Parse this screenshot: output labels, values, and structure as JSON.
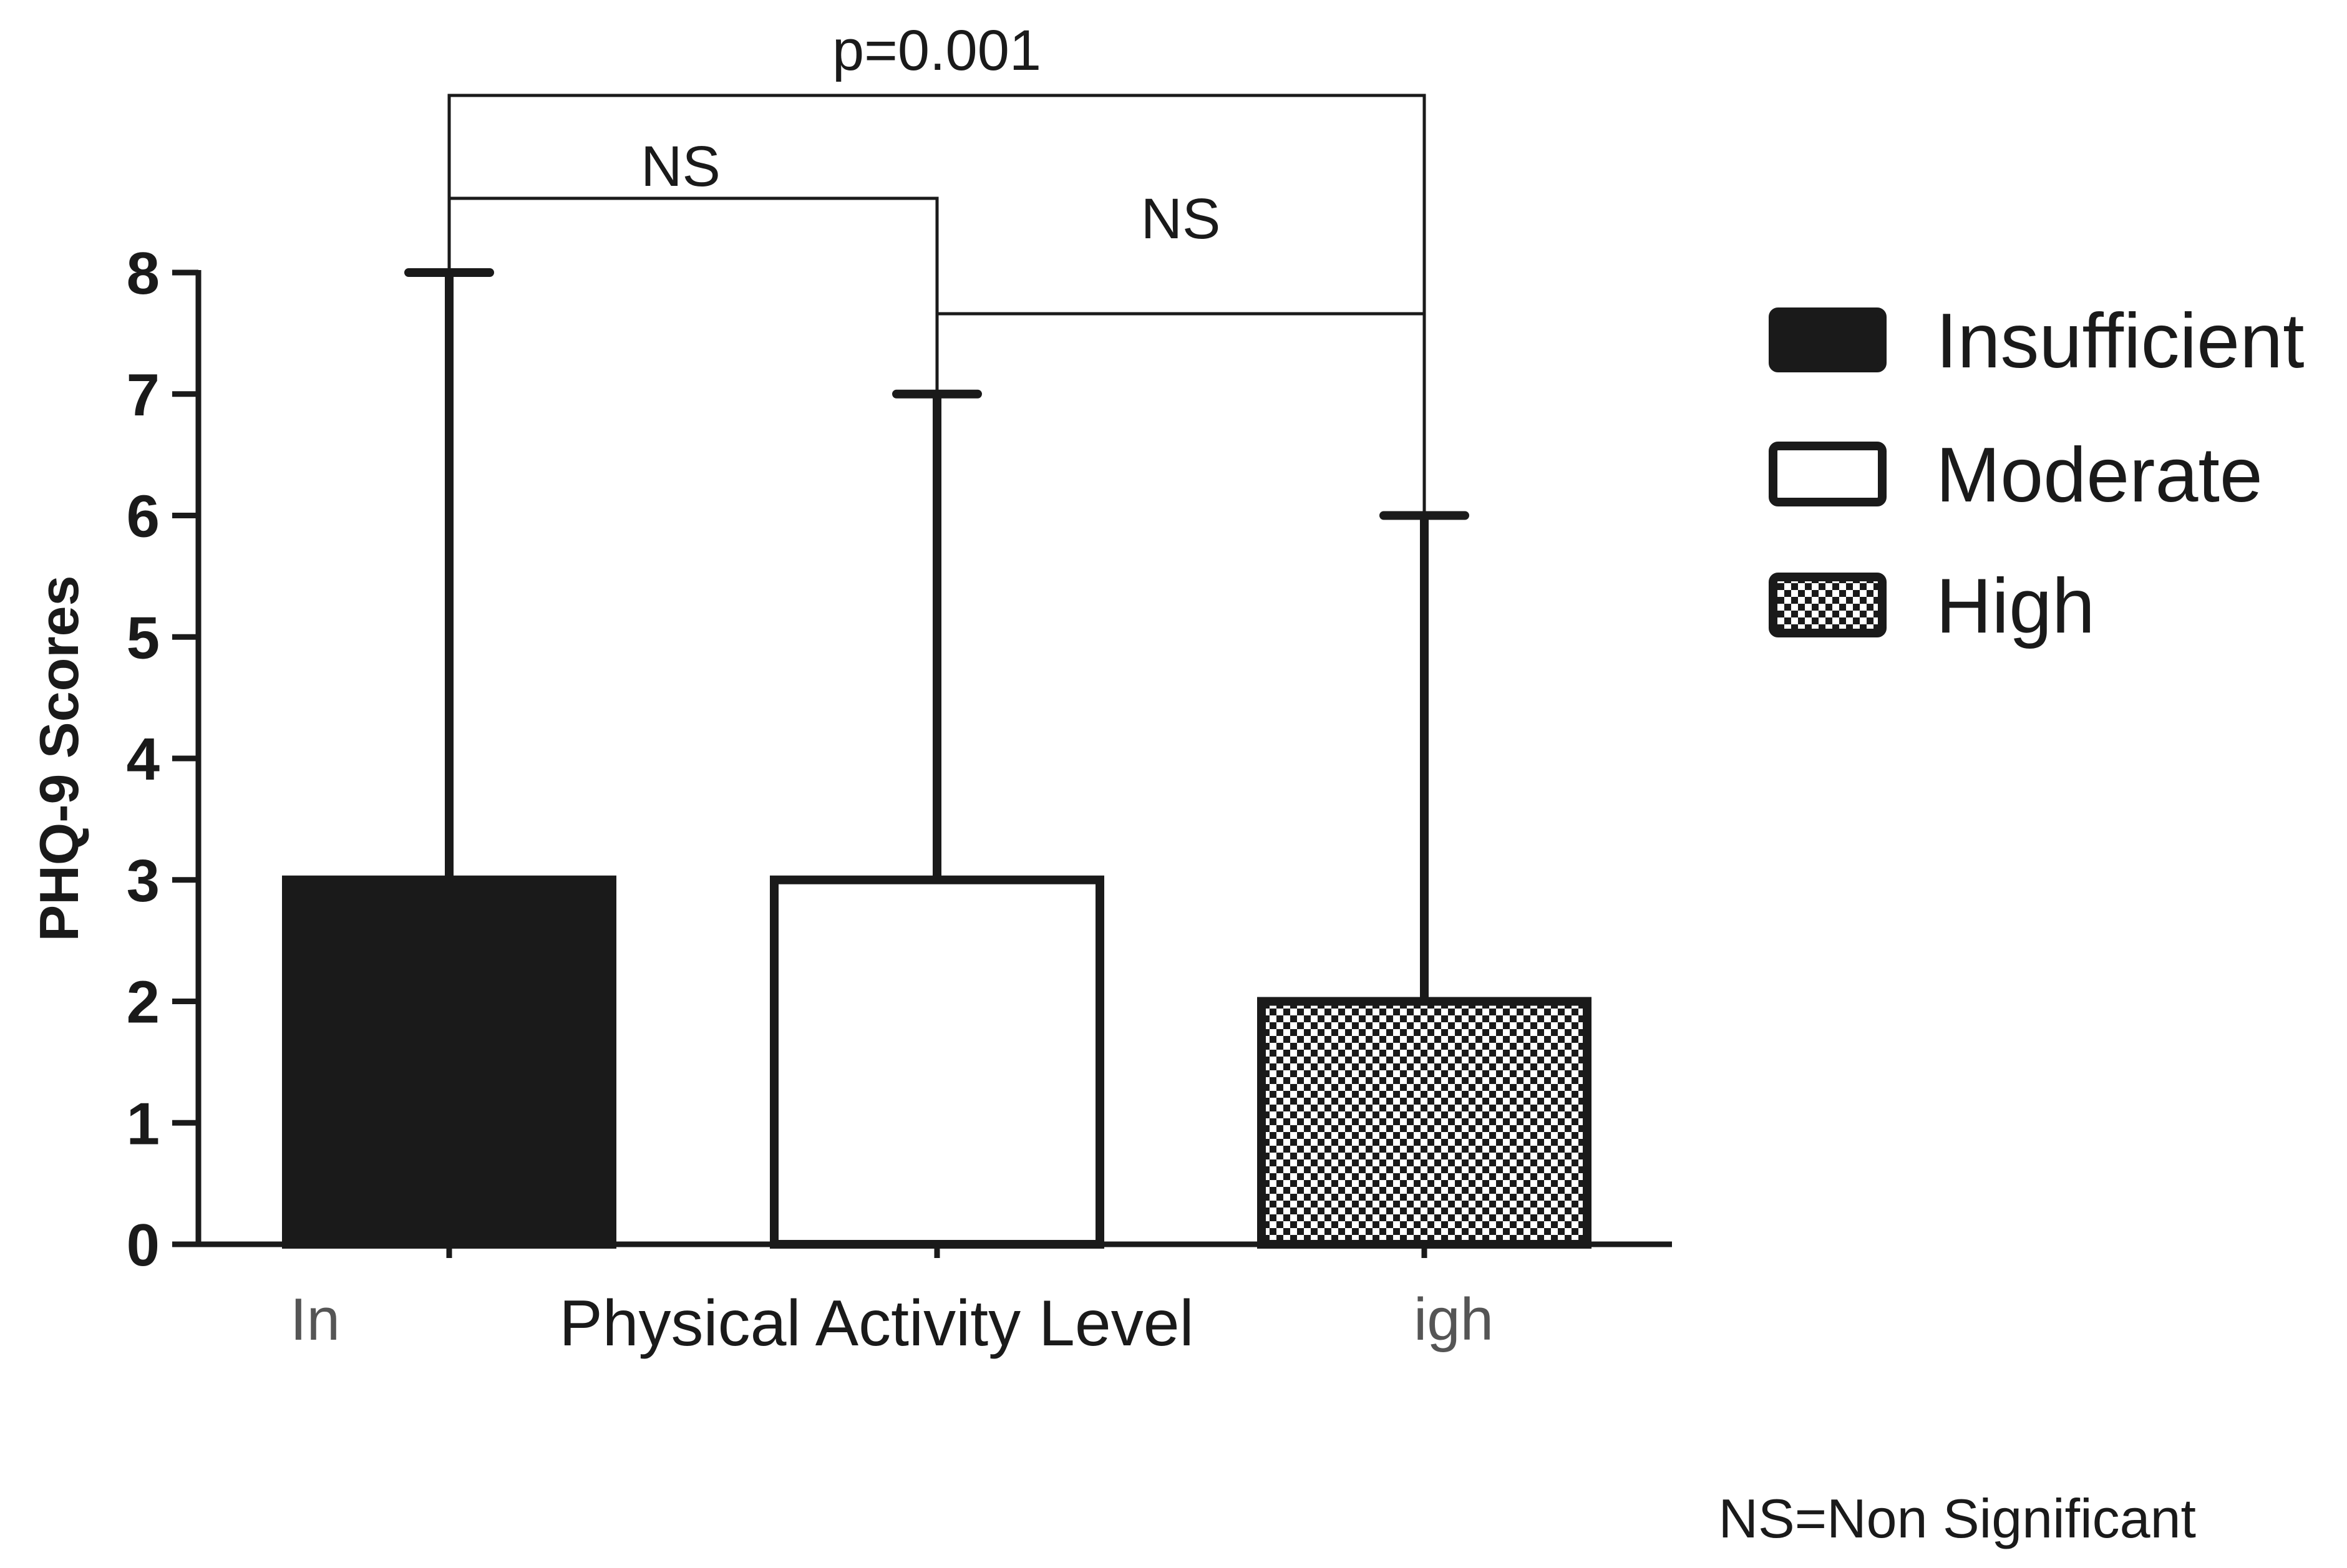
{
  "chart_data": {
    "type": "bar",
    "title": "",
    "xlabel": "Physical Activity Level",
    "ylabel": "PHQ-9 Scores",
    "ylim": [
      0,
      8
    ],
    "yticks": [
      0,
      1,
      2,
      3,
      4,
      5,
      6,
      7,
      8
    ],
    "grid": false,
    "legend_position": "right",
    "categories": [
      "Insufficient",
      "Moderate",
      "High"
    ],
    "values": [
      3,
      3,
      2
    ],
    "error_upper": [
      8,
      7,
      6
    ],
    "x_tick_labels": [
      "In",
      "",
      "igh"
    ],
    "fills": [
      "solid",
      "none",
      "checkered"
    ],
    "colors": {
      "solid": "#1a1a1a",
      "outline": "#1a1a1a",
      "background": "#ffffff"
    },
    "legend": [
      {
        "label": "Insufficient",
        "fill": "solid"
      },
      {
        "label": "Moderate",
        "fill": "none"
      },
      {
        "label": "High",
        "fill": "checkered"
      }
    ],
    "comparisons": [
      {
        "from": 0,
        "to": 2,
        "label": "p=0.001"
      },
      {
        "from": 0,
        "to": 1,
        "label": "NS"
      },
      {
        "from": 1,
        "to": 2,
        "label": "NS"
      }
    ],
    "footnote": "NS=Non Significant"
  }
}
